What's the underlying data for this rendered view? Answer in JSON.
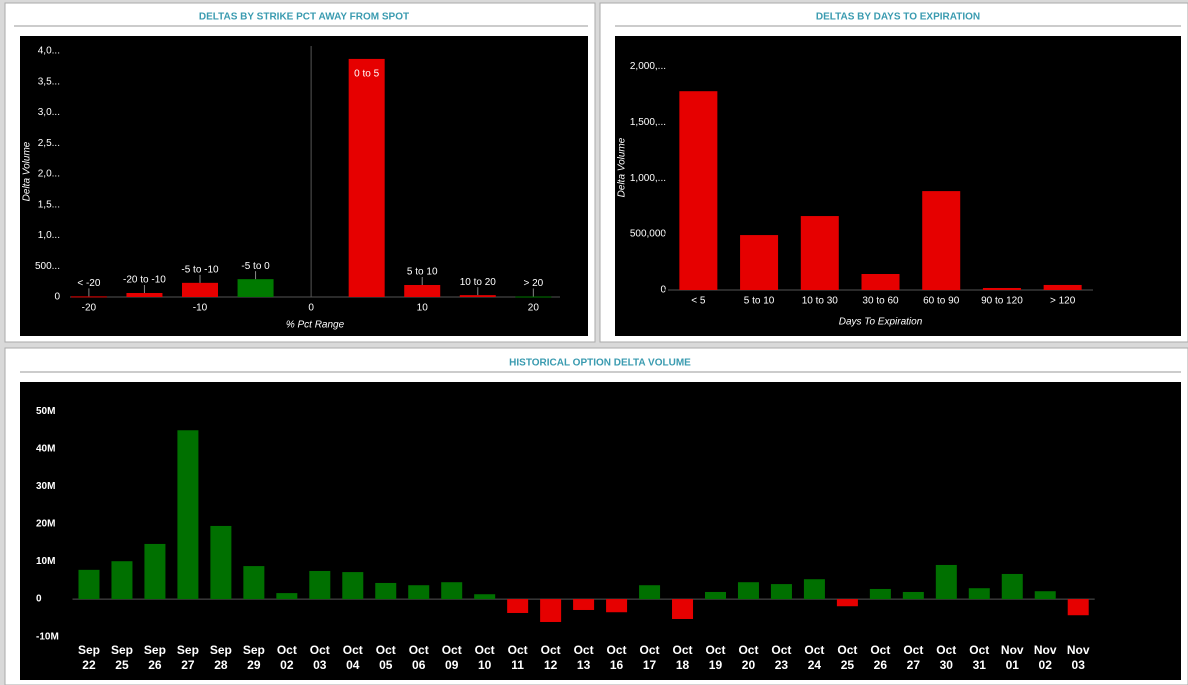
{
  "chart_data": [
    {
      "type": "bar",
      "title": "DELTAS BY STRIKE PCT AWAY FROM SPOT",
      "x_label": "% Pct Range",
      "y_label": "Delta Volume",
      "x": [
        -20,
        -15,
        -10,
        -5,
        5,
        10,
        15,
        20
      ],
      "bar_labels": [
        "< -20",
        "-20 to -10",
        "-5 to -10",
        "-5 to 0",
        "0 to 5",
        "5 to 10",
        "10 to 20",
        "> 20"
      ],
      "values": [
        10,
        65,
        230,
        290,
        3870,
        195,
        30,
        8
      ],
      "colors": [
        "#e60000",
        "#e60000",
        "#e60000",
        "#007a00",
        "#e60000",
        "#e60000",
        "#e60000",
        "#007a00"
      ],
      "xlim": [
        -21.7,
        22.4
      ],
      "xticks": [
        -20,
        -10,
        0,
        10,
        20
      ],
      "ylim": [
        0,
        4080
      ],
      "yticks": [
        0,
        {
          "value": 500,
          "label": "500..."
        },
        {
          "value": 1000,
          "label": "1,0..."
        },
        {
          "value": 1500,
          "label": "1,5..."
        },
        {
          "value": 2000,
          "label": "2,0..."
        },
        {
          "value": 2500,
          "label": "2,5..."
        },
        {
          "value": 3000,
          "label": "3,0..."
        },
        {
          "value": 3500,
          "label": "3,5..."
        },
        {
          "value": 4000,
          "label": "4,0..."
        }
      ],
      "zero_line": true
    },
    {
      "type": "bar",
      "title": "DELTAS BY DAYS TO EXPIRATION",
      "x_label": "Days To Expiration",
      "y_label": "Delta Volume",
      "categories": [
        "< 5",
        "5 to 10",
        "10 to 30",
        "30 to 60",
        "60 to 90",
        "90 to 120",
        "> 120"
      ],
      "values": [
        1777000,
        491000,
        661000,
        143000,
        884000,
        18000,
        45000
      ],
      "color": "#e60000",
      "ylim": [
        0,
        2190000
      ],
      "yticks": [
        0,
        {
          "value": 500000,
          "label": "500,000"
        },
        {
          "value": 1000000,
          "label": "1,000,..."
        },
        {
          "value": 1500000,
          "label": "1,500,..."
        },
        {
          "value": 2000000,
          "label": "2,000,..."
        }
      ]
    },
    {
      "type": "bar",
      "title": "HISTORICAL OPTION DELTA VOLUME",
      "categories": [
        "Sep 22",
        "Sep 25",
        "Sep 26",
        "Sep 27",
        "Sep 28",
        "Sep 29",
        "Oct 02",
        "Oct 03",
        "Oct 04",
        "Oct 05",
        "Oct 06",
        "Oct 09",
        "Oct 10",
        "Oct 11",
        "Oct 12",
        "Oct 13",
        "Oct 16",
        "Oct 17",
        "Oct 18",
        "Oct 19",
        "Oct 20",
        "Oct 23",
        "Oct 24",
        "Oct 25",
        "Oct 26",
        "Oct 27",
        "Oct 30",
        "Oct 31",
        "Nov 01",
        "Nov 02",
        "Nov 03"
      ],
      "values": [
        7800000,
        10100000,
        14700000,
        45000000,
        19500000,
        8800000,
        1600000,
        7500000,
        7200000,
        4300000,
        3700000,
        4500000,
        1300000,
        -3700000,
        -6100000,
        -2900000,
        -3500000,
        3700000,
        -5300000,
        1900000,
        4500000,
        4000000,
        5300000,
        -1900000,
        2700000,
        1900000,
        9100000,
        2900000,
        6700000,
        2100000,
        -4300000
      ],
      "positive_color": "#007000",
      "negative_color": "#e60000",
      "ylim": [
        -10900000,
        54400000
      ],
      "yticks": [
        {
          "value": -10000000,
          "label": "-10M"
        },
        0,
        {
          "value": 10000000,
          "label": "10M"
        },
        {
          "value": 20000000,
          "label": "20M"
        },
        {
          "value": 30000000,
          "label": "30M"
        },
        {
          "value": 40000000,
          "label": "40M"
        },
        {
          "value": 50000000,
          "label": "50M"
        }
      ]
    }
  ]
}
